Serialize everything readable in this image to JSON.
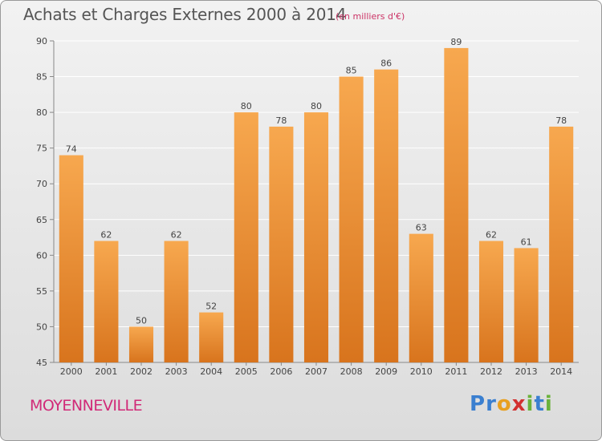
{
  "header": {
    "title": "Achats et Charges Externes 2000 à 2014",
    "subtitle": "(en milliers d'€)"
  },
  "footer": {
    "town": "MOYENNEVILLE",
    "logo": [
      "P",
      "r",
      "o",
      "x",
      "i",
      "t",
      "i"
    ]
  },
  "colors": {
    "bar_top": "#f7a84f",
    "bar_bottom": "#d8741d",
    "grid": "#ffffff",
    "logo": [
      "#3a7fd0",
      "#3a7fd0",
      "#e8a020",
      "#d23030",
      "#6ab23a",
      "#3a7fd0",
      "#6ab23a"
    ]
  },
  "chart_data": {
    "type": "bar",
    "title": "Achats et Charges Externes 2000 à 2014",
    "subtitle": "(en milliers d'€)",
    "categories": [
      "2000",
      "2001",
      "2002",
      "2003",
      "2004",
      "2005",
      "2006",
      "2007",
      "2008",
      "2009",
      "2010",
      "2011",
      "2012",
      "2013",
      "2014"
    ],
    "values": [
      74,
      62,
      50,
      62,
      52,
      80,
      78,
      80,
      85,
      86,
      63,
      89,
      62,
      61,
      78
    ],
    "ylim": [
      45,
      90
    ],
    "yticks": [
      45,
      50,
      55,
      60,
      65,
      70,
      75,
      80,
      85,
      90
    ],
    "grid": true
  }
}
